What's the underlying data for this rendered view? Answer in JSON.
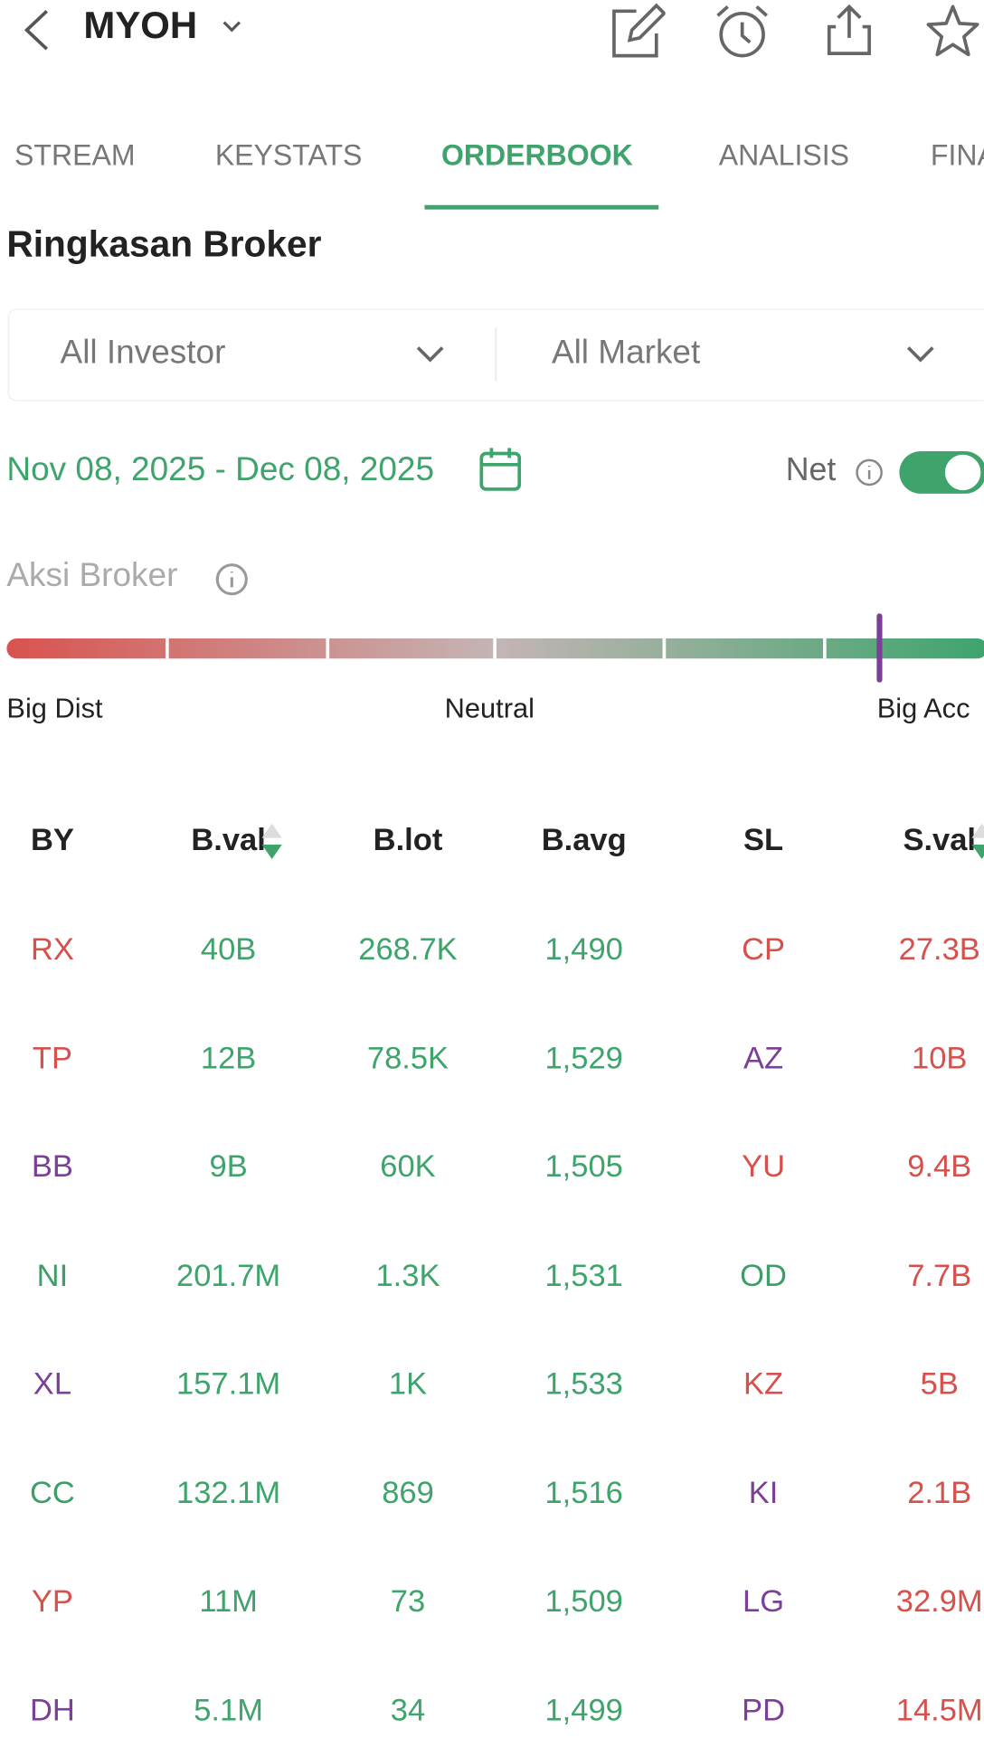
{
  "header": {
    "ticker": "MYOH"
  },
  "tabs": [
    "STREAM",
    "KEYSTATS",
    "ORDERBOOK",
    "ANALISIS",
    "FINA"
  ],
  "active_tab": 2,
  "title": "Ringkasan Broker",
  "filters": [
    "All Investor",
    "All Market"
  ],
  "date_range": "Nov 08, 2025 - Dec 08, 2025",
  "net_label": "Net",
  "aksi_broker": {
    "label": "Aksi Broker",
    "scale_labels": [
      "Big Dist",
      "Neutral",
      "Big Acc"
    ],
    "indicator": 0.89
  },
  "table": {
    "columns": [
      "BY",
      "B.val",
      "B.lot",
      "B.avg",
      "SL",
      "S.val"
    ],
    "rows": [
      [
        "RX",
        "40B",
        "268.7K",
        "1,490",
        "CP",
        "27.3B"
      ],
      [
        "TP",
        "12B",
        "78.5K",
        "1,529",
        "AZ",
        "10B"
      ],
      [
        "BB",
        "9B",
        "60K",
        "1,505",
        "YU",
        "9.4B"
      ],
      [
        "NI",
        "201.7M",
        "1.3K",
        "1,531",
        "OD",
        "7.7B"
      ],
      [
        "XL",
        "157.1M",
        "1K",
        "1,533",
        "KZ",
        "5B"
      ],
      [
        "CC",
        "132.1M",
        "869",
        "1,516",
        "KI",
        "2.1B"
      ],
      [
        "YP",
        "11M",
        "73",
        "1,509",
        "LG",
        "32.9M"
      ],
      [
        "DH",
        "5.1M",
        "34",
        "1,499",
        "PD",
        "14.5M"
      ]
    ],
    "by_colors": [
      "#d6504c",
      "#d6504c",
      "#7b3f98",
      "#3e9e68",
      "#7b3f98",
      "#3e9e68",
      "#d6504c",
      "#7b3f98"
    ],
    "sl_colors": [
      "#d6504c",
      "#7b3f98",
      "#d6504c",
      "#3e9e68",
      "#d6504c",
      "#7b3f98",
      "#7b3f98",
      "#7b3f98"
    ]
  }
}
